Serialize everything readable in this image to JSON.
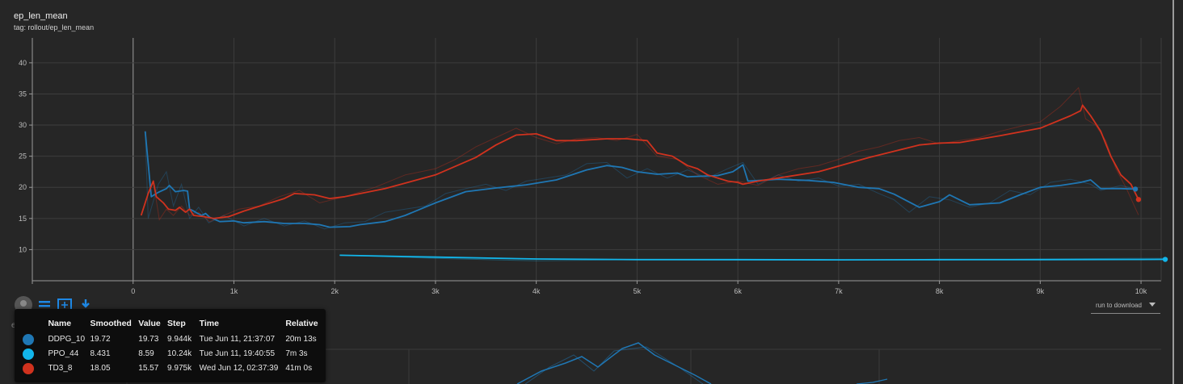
{
  "card": {
    "title": "ep_len_mean",
    "tag": "tag: rollout/ep_len_mean"
  },
  "lower_card": {
    "title_fragment": "ep_re"
  },
  "toolbar": {
    "icons": [
      "run-filter-avatar-icon",
      "expand-lines-icon",
      "fit-domain-icon",
      "download-icon"
    ]
  },
  "run_download": {
    "label": "run to download"
  },
  "chart_data": {
    "type": "line",
    "xlim": [
      -1000,
      10200
    ],
    "ylim": [
      5,
      44
    ],
    "grid": true,
    "x_ticks": [
      0,
      1000,
      2000,
      3000,
      4000,
      5000,
      6000,
      7000,
      8000,
      9000,
      10000
    ],
    "x_tick_labels": [
      "0",
      "1k",
      "2k",
      "3k",
      "4k",
      "5k",
      "6k",
      "7k",
      "8k",
      "9k",
      "10k"
    ],
    "y_ticks": [
      10,
      15,
      20,
      25,
      30,
      35,
      40
    ],
    "y_tick_labels": [
      "10",
      "15",
      "20",
      "25",
      "30",
      "35",
      "40"
    ],
    "series": [
      {
        "name": "DDPG_10",
        "color": "#1f77b4",
        "points": [
          [
            120,
            29
          ],
          [
            180,
            18.5
          ],
          [
            250,
            19.2
          ],
          [
            330,
            19.8
          ],
          [
            360,
            20.3
          ],
          [
            420,
            19.3
          ],
          [
            500,
            19.5
          ],
          [
            540,
            19.4
          ],
          [
            560,
            16.5
          ],
          [
            600,
            16.2
          ],
          [
            640,
            15.8
          ],
          [
            680,
            15.5
          ],
          [
            720,
            15.8
          ],
          [
            760,
            15.2
          ],
          [
            860,
            14.5
          ],
          [
            1000,
            14.6
          ],
          [
            1100,
            14.3
          ],
          [
            1300,
            14.5
          ],
          [
            1500,
            14.2
          ],
          [
            1700,
            14.2
          ],
          [
            1850,
            14
          ],
          [
            1950,
            13.6
          ],
          [
            2150,
            13.7
          ],
          [
            2250,
            14
          ],
          [
            2500,
            14.5
          ],
          [
            2700,
            15.5
          ],
          [
            3000,
            17.5
          ],
          [
            3300,
            19.3
          ],
          [
            3600,
            19.9
          ],
          [
            3900,
            20.4
          ],
          [
            4200,
            21.2
          ],
          [
            4500,
            22.8
          ],
          [
            4700,
            23.5
          ],
          [
            4850,
            23.2
          ],
          [
            5000,
            22.5
          ],
          [
            5200,
            22.1
          ],
          [
            5400,
            22.3
          ],
          [
            5500,
            21.7
          ],
          [
            5800,
            21.9
          ],
          [
            5950,
            22.5
          ],
          [
            6050,
            23.6
          ],
          [
            6100,
            21
          ],
          [
            6400,
            21.3
          ],
          [
            6700,
            21.1
          ],
          [
            6950,
            20.8
          ],
          [
            7200,
            20
          ],
          [
            7400,
            19.8
          ],
          [
            7550,
            18.9
          ],
          [
            7800,
            16.8
          ],
          [
            8000,
            17.7
          ],
          [
            8100,
            18.8
          ],
          [
            8200,
            18
          ],
          [
            8300,
            17.2
          ],
          [
            8600,
            17.5
          ],
          [
            8800,
            18.8
          ],
          [
            9000,
            20
          ],
          [
            9200,
            20.3
          ],
          [
            9400,
            20.8
          ],
          [
            9500,
            21.2
          ],
          [
            9600,
            19.8
          ],
          [
            9800,
            19.8
          ],
          [
            9944,
            19.72
          ]
        ],
        "raw_points": [
          [
            120,
            29
          ],
          [
            150,
            15
          ],
          [
            250,
            20.5
          ],
          [
            330,
            22.5
          ],
          [
            400,
            17
          ],
          [
            480,
            20.5
          ],
          [
            560,
            15
          ],
          [
            650,
            16.8
          ],
          [
            750,
            14.3
          ],
          [
            900,
            15.5
          ],
          [
            1100,
            13.8
          ],
          [
            1300,
            15
          ],
          [
            1500,
            13.8
          ],
          [
            1700,
            14.6
          ],
          [
            1900,
            13.3
          ],
          [
            2100,
            14.3
          ],
          [
            2300,
            14.5
          ],
          [
            2500,
            16
          ],
          [
            2700,
            16.5
          ],
          [
            2900,
            17
          ],
          [
            3100,
            19
          ],
          [
            3300,
            19.8
          ],
          [
            3500,
            20.5
          ],
          [
            3700,
            19.5
          ],
          [
            3900,
            21
          ],
          [
            4100,
            21.5
          ],
          [
            4300,
            22
          ],
          [
            4500,
            23.8
          ],
          [
            4700,
            24
          ],
          [
            4900,
            21.5
          ],
          [
            5100,
            23
          ],
          [
            5300,
            21.5
          ],
          [
            5500,
            22.8
          ],
          [
            5700,
            21.5
          ],
          [
            5900,
            23
          ],
          [
            6050,
            24
          ],
          [
            6200,
            20.5
          ],
          [
            6400,
            22
          ],
          [
            6600,
            21
          ],
          [
            6800,
            21.5
          ],
          [
            7000,
            20.2
          ],
          [
            7200,
            20.5
          ],
          [
            7400,
            19
          ],
          [
            7550,
            18
          ],
          [
            7700,
            16
          ],
          [
            7900,
            18.5
          ],
          [
            8100,
            18
          ],
          [
            8300,
            16.8
          ],
          [
            8500,
            17.5
          ],
          [
            8700,
            19.5
          ],
          [
            8900,
            18.8
          ],
          [
            9100,
            20.8
          ],
          [
            9300,
            21.3
          ],
          [
            9500,
            20.5
          ],
          [
            9600,
            19.5
          ],
          [
            9800,
            20.3
          ],
          [
            9944,
            19.73
          ]
        ]
      },
      {
        "name": "PPO_44",
        "color": "#12b5ea",
        "points": [
          [
            2050,
            9.1
          ],
          [
            3000,
            8.8
          ],
          [
            4000,
            8.5
          ],
          [
            5000,
            8.4
          ],
          [
            6000,
            8.4
          ],
          [
            7000,
            8.35
          ],
          [
            8000,
            8.4
          ],
          [
            9000,
            8.4
          ],
          [
            10000,
            8.42
          ],
          [
            10240,
            8.431
          ]
        ],
        "raw_points": [
          [
            2050,
            9.1
          ],
          [
            3000,
            8.6
          ],
          [
            4000,
            8.2
          ],
          [
            5000,
            8.4
          ],
          [
            6000,
            8.3
          ],
          [
            7000,
            8.4
          ],
          [
            8000,
            8.3
          ],
          [
            9000,
            8.5
          ],
          [
            10000,
            8.6
          ],
          [
            10240,
            8.59
          ]
        ]
      },
      {
        "name": "TD3_8",
        "color": "#d0321e",
        "points": [
          [
            80,
            15.5
          ],
          [
            150,
            19
          ],
          [
            200,
            21
          ],
          [
            230,
            18.5
          ],
          [
            300,
            17.5
          ],
          [
            350,
            16.5
          ],
          [
            420,
            16.3
          ],
          [
            460,
            16.8
          ],
          [
            520,
            16
          ],
          [
            560,
            16.5
          ],
          [
            600,
            15.5
          ],
          [
            700,
            15.3
          ],
          [
            800,
            15
          ],
          [
            950,
            15.3
          ],
          [
            1100,
            16.2
          ],
          [
            1300,
            17.2
          ],
          [
            1500,
            18.2
          ],
          [
            1600,
            19
          ],
          [
            1800,
            18.8
          ],
          [
            1950,
            18.2
          ],
          [
            2100,
            18.5
          ],
          [
            2500,
            19.8
          ],
          [
            3000,
            22
          ],
          [
            3400,
            24.8
          ],
          [
            3600,
            26.8
          ],
          [
            3800,
            28.4
          ],
          [
            4000,
            28.6
          ],
          [
            4200,
            27.5
          ],
          [
            4400,
            27.5
          ],
          [
            4700,
            27.8
          ],
          [
            4900,
            27.8
          ],
          [
            5100,
            27.5
          ],
          [
            5200,
            25.5
          ],
          [
            5350,
            25
          ],
          [
            5500,
            23.5
          ],
          [
            5600,
            23
          ],
          [
            5700,
            22
          ],
          [
            5800,
            21.5
          ],
          [
            5900,
            21
          ],
          [
            6000,
            20.8
          ],
          [
            6050,
            20.5
          ],
          [
            6200,
            21
          ],
          [
            6400,
            21.5
          ],
          [
            6800,
            22.5
          ],
          [
            7300,
            24.8
          ],
          [
            7800,
            26.8
          ],
          [
            8000,
            27.1
          ],
          [
            8200,
            27.2
          ],
          [
            8600,
            28.3
          ],
          [
            9000,
            29.5
          ],
          [
            9300,
            31.5
          ],
          [
            9400,
            32.3
          ],
          [
            9420,
            33.2
          ],
          [
            9500,
            31.5
          ],
          [
            9600,
            29
          ],
          [
            9700,
            25
          ],
          [
            9800,
            22
          ],
          [
            9900,
            20.5
          ],
          [
            9975,
            18.05
          ]
        ],
        "raw_points": [
          [
            80,
            15.5
          ],
          [
            150,
            19
          ],
          [
            200,
            21
          ],
          [
            260,
            14.8
          ],
          [
            330,
            16.5
          ],
          [
            400,
            15.5
          ],
          [
            480,
            17
          ],
          [
            560,
            15.5
          ],
          [
            650,
            16
          ],
          [
            760,
            14.5
          ],
          [
            900,
            15.5
          ],
          [
            1050,
            16.5
          ],
          [
            1250,
            17
          ],
          [
            1450,
            18.5
          ],
          [
            1650,
            19.5
          ],
          [
            1850,
            17.5
          ],
          [
            2100,
            18.5
          ],
          [
            2400,
            20
          ],
          [
            2700,
            22
          ],
          [
            3000,
            23
          ],
          [
            3200,
            24.5
          ],
          [
            3400,
            26.5
          ],
          [
            3600,
            28
          ],
          [
            3800,
            29.5
          ],
          [
            4000,
            28
          ],
          [
            4200,
            27
          ],
          [
            4400,
            27.8
          ],
          [
            4600,
            28
          ],
          [
            4800,
            27.5
          ],
          [
            5000,
            28.5
          ],
          [
            5200,
            25
          ],
          [
            5400,
            24.5
          ],
          [
            5600,
            22
          ],
          [
            5800,
            20.5
          ],
          [
            6000,
            21
          ],
          [
            6200,
            20.3
          ],
          [
            6400,
            22
          ],
          [
            6600,
            23
          ],
          [
            6800,
            23.5
          ],
          [
            7000,
            24.5
          ],
          [
            7200,
            25.8
          ],
          [
            7400,
            26.5
          ],
          [
            7600,
            27.5
          ],
          [
            7800,
            28
          ],
          [
            8000,
            27
          ],
          [
            8200,
            27.5
          ],
          [
            8400,
            28
          ],
          [
            8600,
            29
          ],
          [
            8800,
            29.8
          ],
          [
            9000,
            30.5
          ],
          [
            9200,
            33
          ],
          [
            9380,
            36
          ],
          [
            9450,
            31
          ],
          [
            9550,
            30
          ],
          [
            9650,
            27.5
          ],
          [
            9750,
            23
          ],
          [
            9850,
            20
          ],
          [
            9975,
            15.57
          ]
        ]
      }
    ]
  },
  "tooltip": {
    "headers": {
      "name": "Name",
      "smoothed": "Smoothed",
      "value": "Value",
      "step": "Step",
      "time": "Time",
      "relative": "Relative"
    },
    "rows": [
      {
        "color": "#1f77b4",
        "name": "DDPG_10",
        "smoothed": "19.72",
        "value": "19.73",
        "step": "9.944k",
        "time": "Tue Jun 11, 21:37:07",
        "relative": "20m 13s"
      },
      {
        "color": "#12b5ea",
        "name": "PPO_44",
        "smoothed": "8.431",
        "value": "8.59",
        "step": "10.24k",
        "time": "Tue Jun 11, 19:40:55",
        "relative": "7m 3s"
      },
      {
        "color": "#d0321e",
        "name": "TD3_8",
        "smoothed": "18.05",
        "value": "15.57",
        "step": "9.975k",
        "time": "Wed Jun 12, 02:37:39",
        "relative": "41m 0s"
      }
    ]
  }
}
